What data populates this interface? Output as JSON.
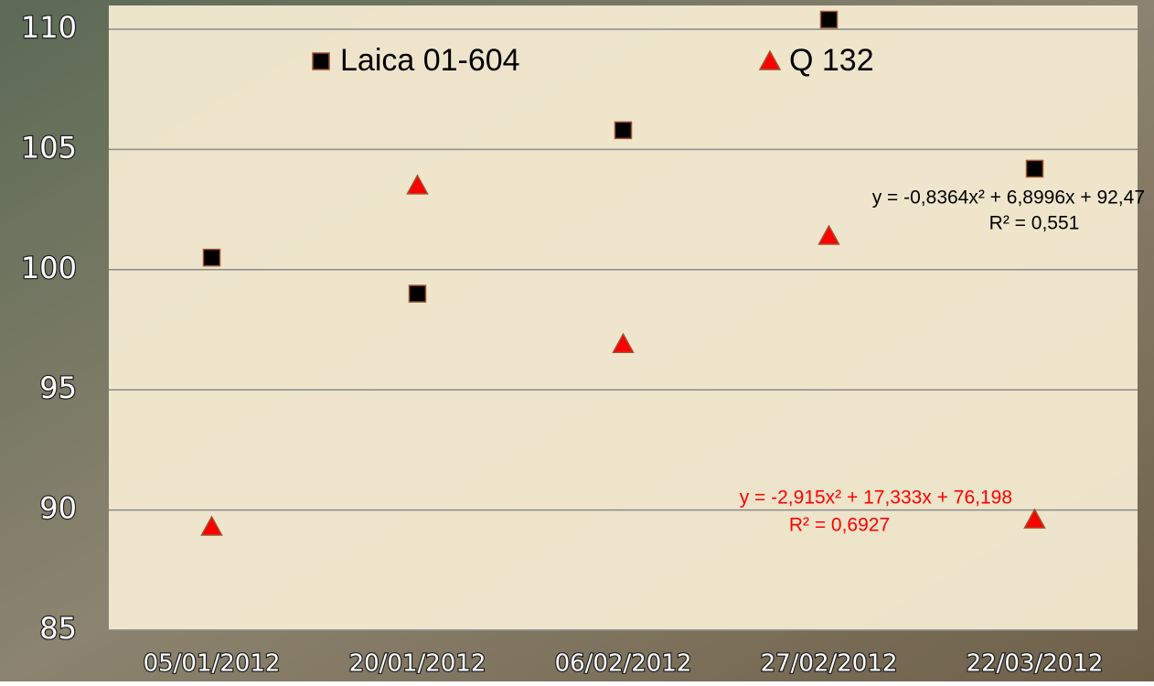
{
  "chart_data": {
    "type": "scatter",
    "categories": [
      "05/01/2012",
      "20/01/2012",
      "06/02/2012",
      "27/02/2012",
      "22/03/2012"
    ],
    "series": [
      {
        "name": "Laica 01-604",
        "color": "#000000",
        "marker": "square",
        "values": [
          100.5,
          99.0,
          105.8,
          110.4,
          104.2
        ],
        "trendline": {
          "equation": "y = -0,8364x² + 6,8996x + 92,47",
          "r2": "R² = 0,551"
        }
      },
      {
        "name": "Q 132",
        "color": "#ff0000",
        "marker": "triangle",
        "values": [
          89.3,
          103.5,
          96.9,
          101.4,
          89.6
        ],
        "trendline": {
          "equation": "y = -2,915x² + 17,333x + 76,198",
          "r2": "R² = 0,6927"
        }
      }
    ],
    "ylim": [
      85,
      111
    ],
    "yticks": [
      85,
      90,
      95,
      100,
      105,
      110
    ],
    "grid": true,
    "legend": "top"
  }
}
